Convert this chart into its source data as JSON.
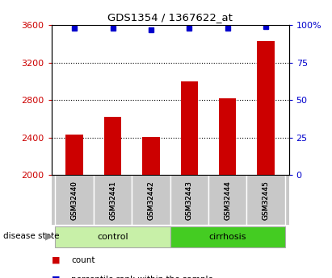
{
  "title": "GDS1354 / 1367622_at",
  "samples": [
    "GSM32440",
    "GSM32441",
    "GSM32442",
    "GSM32443",
    "GSM32444",
    "GSM32445"
  ],
  "counts": [
    2430,
    2620,
    2410,
    3000,
    2820,
    3430
  ],
  "percentiles": [
    98,
    98,
    97,
    98,
    98,
    99
  ],
  "ylim_left": [
    2000,
    3600
  ],
  "ylim_right": [
    0,
    100
  ],
  "yticks_left": [
    2000,
    2400,
    2800,
    3200,
    3600
  ],
  "yticks_right": [
    0,
    25,
    50,
    75,
    100
  ],
  "bar_color": "#cc0000",
  "dot_color": "#0000cc",
  "group_colors": {
    "control": "#c8f0a8",
    "cirrhosis": "#44cc22"
  },
  "bg_color": "#ffffff",
  "sample_box_color": "#c8c8c8",
  "left_tick_color": "#cc0000",
  "right_tick_color": "#0000cc"
}
